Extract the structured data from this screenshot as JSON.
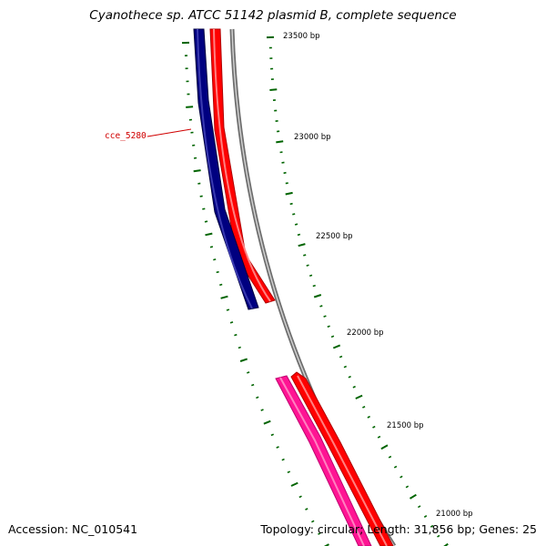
{
  "title": "Cyanothece sp. ATCC 51142 plasmid B, complete sequence",
  "footer": {
    "accession": "Accession: NC_010541",
    "summary": "Topology: circular; Length: 31,856 bp; Genes: 25"
  },
  "tick_labels": [
    "23500 bp",
    "23000 bp",
    "22500 bp",
    "22000 bp",
    "21500 bp",
    "21000 bp"
  ],
  "gene_labels": [
    "cce_5280"
  ],
  "colors": {
    "backbone": "#808080",
    "forward_gene": "#ff0000",
    "reverse_gene": "#000080",
    "pink_gene": "#ff1493",
    "ticks": "#006400",
    "label": "#d00000"
  }
}
